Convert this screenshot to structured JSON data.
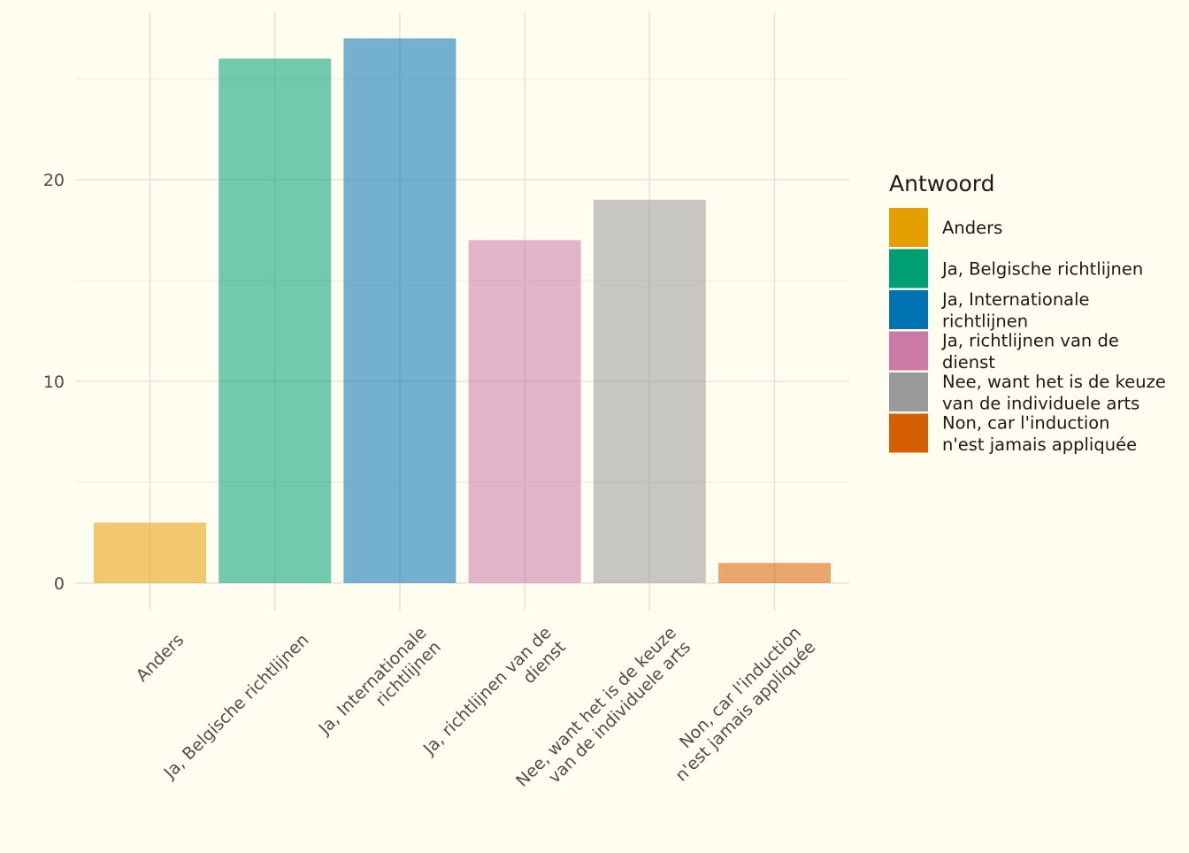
{
  "chart_data": {
    "type": "bar",
    "title": "",
    "xlabel": "",
    "ylabel": "",
    "categories": [
      "Anders",
      "Ja, Belgische richtlijnen",
      "Ja, Internationale richtlijnen",
      "Ja, richtlijnen van de dienst",
      "Nee, want het is de keuze van de individuele arts",
      "Non, car l'induction n'est jamais appliquée"
    ],
    "category_label_lines": [
      [
        "Anders"
      ],
      [
        "Ja, Belgische richtlijnen"
      ],
      [
        "Ja, Internationale",
        "richtlijnen"
      ],
      [
        "Ja, richtlijnen van de",
        "dienst"
      ],
      [
        "Nee, want het is de keuze",
        "van de individuele arts"
      ],
      [
        "Non, car l'induction",
        "n'est jamais appliquée"
      ]
    ],
    "values": [
      3,
      26,
      27,
      17,
      19,
      1
    ],
    "colors": [
      "#e69f00",
      "#009e73",
      "#0072b2",
      "#cc79a7",
      "#999999",
      "#d55e00"
    ],
    "bar_opacity": 0.55,
    "ylim": [
      0,
      28
    ],
    "y_ticks": [
      0,
      10,
      20
    ],
    "y_tick_labels": [
      "0",
      "10",
      "20"
    ],
    "grid": true,
    "legend": {
      "title": "Antwoord",
      "placement": "right",
      "entries": [
        {
          "lines": [
            "Anders"
          ],
          "color": "#e69f00"
        },
        {
          "lines": [
            "Ja, Belgische richtlijnen"
          ],
          "color": "#009e73"
        },
        {
          "lines": [
            "Ja, Internationale",
            "richtlijnen"
          ],
          "color": "#0072b2"
        },
        {
          "lines": [
            "Ja, richtlijnen van de",
            "dienst"
          ],
          "color": "#cc79a7"
        },
        {
          "lines": [
            "Nee, want het is de keuze",
            "van de individuele arts"
          ],
          "color": "#999999"
        },
        {
          "lines": [
            "Non, car l'induction",
            "n'est jamais appliquée"
          ],
          "color": "#d55e00"
        }
      ]
    }
  }
}
